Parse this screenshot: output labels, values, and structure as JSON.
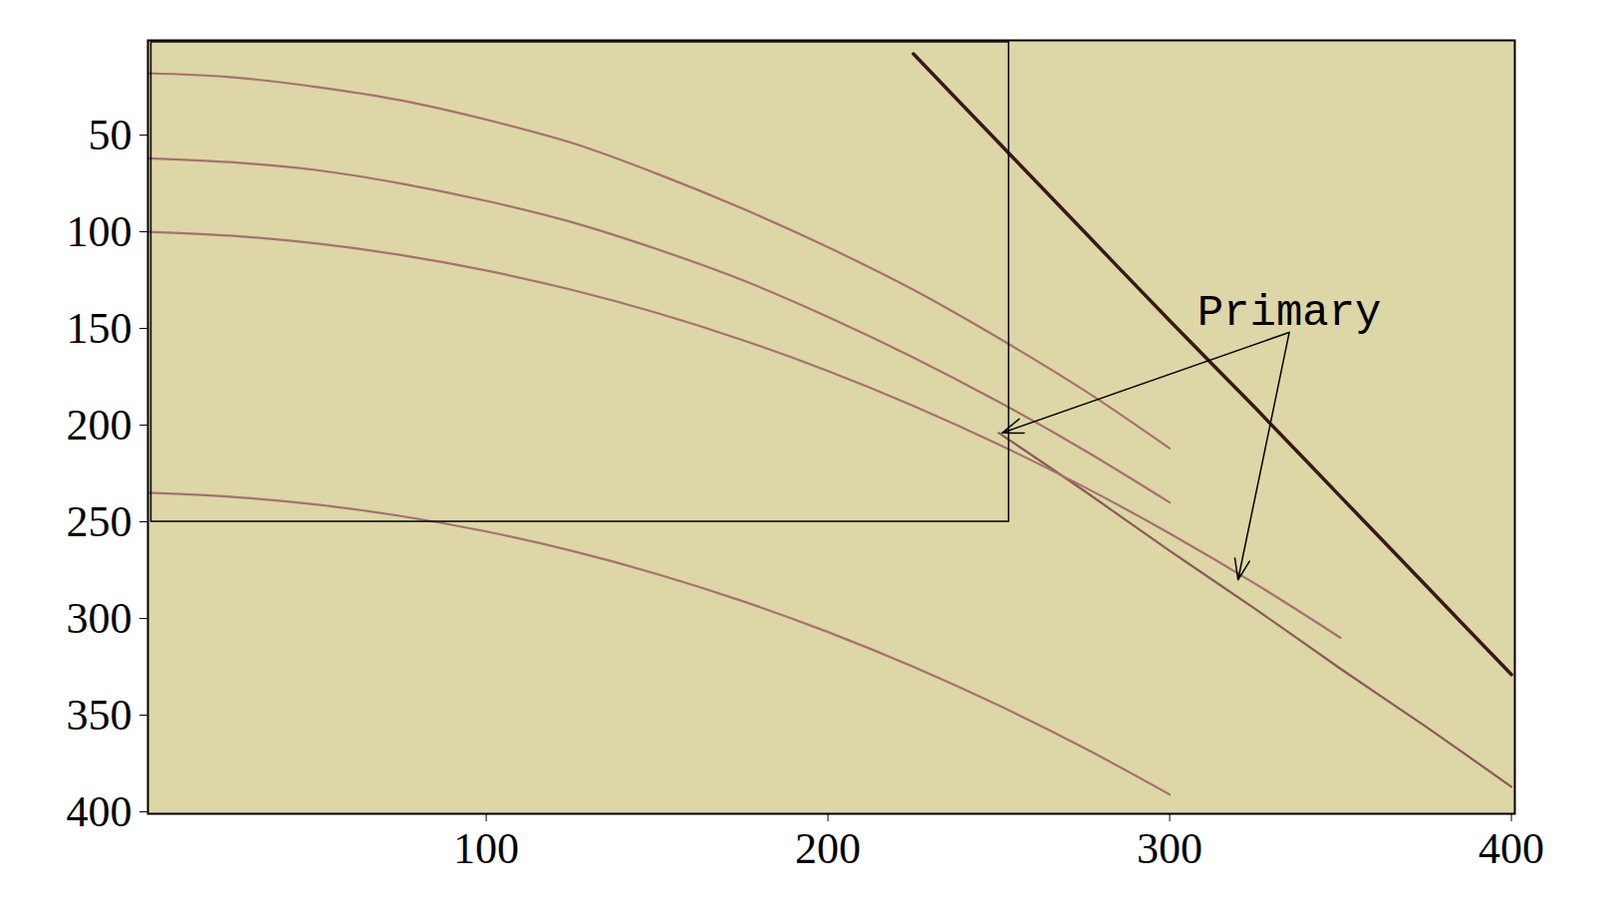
{
  "chart_data": {
    "type": "line",
    "x": [
      1,
      25,
      50,
      75,
      100,
      125,
      150,
      175,
      200,
      225,
      250,
      275,
      300,
      325,
      350,
      375,
      400
    ],
    "series": [
      {
        "color": "#3a1818",
        "values": [
          null,
          null,
          null,
          null,
          null,
          null,
          null,
          null,
          null,
          8,
          54,
          100,
          146,
          191,
          237,
          283,
          329
        ]
      },
      {
        "color": "#8a5a5a",
        "values": [
          null,
          null,
          null,
          null,
          null,
          null,
          null,
          null,
          null,
          null,
          204,
          234,
          265,
          295,
          326,
          356,
          387
        ]
      },
      {
        "color": "#a87070",
        "values": [
          18,
          20,
          25,
          32,
          42,
          54,
          70,
          88,
          108,
          130,
          155,
          182,
          212,
          null,
          null,
          null,
          null
        ]
      },
      {
        "color": "#a87070",
        "values": [
          62,
          64,
          68,
          75,
          84,
          95,
          109,
          125,
          144,
          165,
          188,
          213,
          240,
          null,
          null,
          null,
          null
        ]
      },
      {
        "color": "#a87070",
        "values": [
          100,
          102,
          106,
          112,
          120,
          130,
          142,
          156,
          172,
          190,
          210,
          232,
          256,
          282,
          310,
          null,
          null
        ]
      },
      {
        "color": "#a87070",
        "values": [
          235,
          237,
          241,
          247,
          255,
          265,
          277,
          291,
          307,
          325,
          345,
          367,
          391,
          null,
          null,
          null,
          null
        ]
      }
    ],
    "xlim": [
      1,
      401
    ],
    "ylim": [
      1,
      401
    ],
    "xticks": [
      100,
      200,
      300,
      400
    ],
    "yticks": [
      50,
      100,
      150,
      200,
      250,
      300,
      350,
      400
    ],
    "grid": false,
    "box": {
      "x": [
        2,
        253
      ],
      "y": [
        2,
        250
      ]
    },
    "annotations": [
      {
        "text": "Primary",
        "x": 335,
        "y": 141,
        "arrows": [
          {
            "from": [
              335,
              152
            ],
            "to": [
              251,
              204
            ]
          },
          {
            "from": [
              335,
              152
            ],
            "to": [
              320,
              280
            ]
          }
        ]
      }
    ]
  }
}
